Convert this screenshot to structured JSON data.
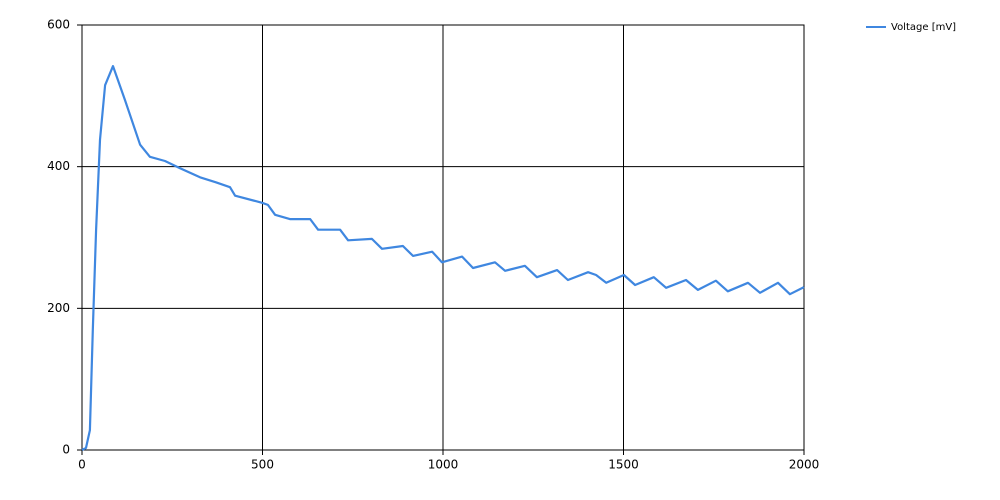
{
  "chart_data": {
    "type": "line",
    "x": [
      0,
      11,
      22,
      30,
      39,
      50,
      64,
      86,
      119,
      161,
      188,
      230,
      271,
      327,
      371,
      410,
      424,
      499,
      515,
      535,
      576,
      632,
      654,
      715,
      737,
      803,
      831,
      889,
      917,
      970,
      997,
      1053,
      1083,
      1144,
      1172,
      1227,
      1260,
      1316,
      1346,
      1402,
      1424,
      1452,
      1501,
      1532,
      1584,
      1618,
      1673,
      1706,
      1756,
      1789,
      1845,
      1878,
      1928,
      1961,
      2000
    ],
    "series": [
      {
        "name": "Voltage [mV]",
        "color": "#3f87e0",
        "values": [
          0,
          3,
          28,
          169,
          311,
          438,
          515,
          542,
          494,
          431,
          414,
          408,
          398,
          385,
          378,
          371,
          359,
          349,
          346,
          332,
          326,
          326,
          311,
          311,
          296,
          298,
          284,
          288,
          274,
          280,
          265,
          273,
          257,
          265,
          253,
          260,
          244,
          254,
          240,
          251,
          247,
          236,
          247,
          233,
          244,
          229,
          240,
          226,
          239,
          224,
          236,
          222,
          236,
          220,
          230
        ]
      }
    ],
    "xlim": [
      0,
      2000
    ],
    "xticks": [
      0,
      500,
      1000,
      1500,
      2000
    ],
    "ylim": [
      0,
      600
    ],
    "yticks": [
      0,
      200,
      400,
      600
    ],
    "grid": true,
    "legend": "top-right"
  }
}
